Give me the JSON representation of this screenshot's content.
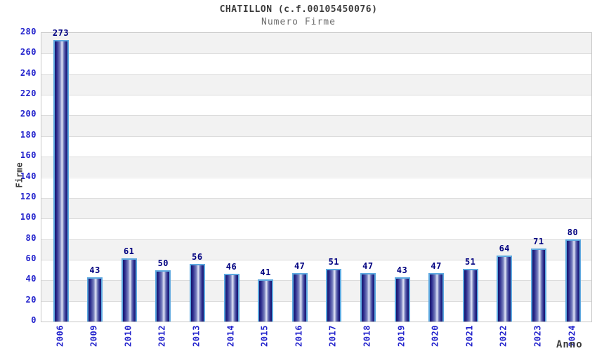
{
  "chart": {
    "title": "CHATILLON (c.f.00105450076)",
    "subtitle": "Numero Firme",
    "y_axis_label": "Firme",
    "x_axis_label": "Anno"
  },
  "chart_data": {
    "type": "bar",
    "title": "CHATILLON (c.f.00105450076)",
    "subtitle": "Numero Firme",
    "xlabel": "Anno",
    "ylabel": "Firme",
    "categories": [
      "2006",
      "2009",
      "2010",
      "2012",
      "2013",
      "2014",
      "2015",
      "2016",
      "2017",
      "2018",
      "2019",
      "2020",
      "2021",
      "2022",
      "2023",
      "2024"
    ],
    "values": [
      273,
      43,
      61,
      50,
      56,
      46,
      41,
      47,
      51,
      47,
      43,
      47,
      51,
      64,
      71,
      80
    ],
    "ylim": [
      0,
      280
    ],
    "ytick_step": 20,
    "grid": "horizontal-bands-alternating",
    "legend": "none",
    "bar_value_labels_shown": true,
    "colors": {
      "tick_label_blue": "#2222cc",
      "value_label_navy": "#000080",
      "bar_outline": "#5ea9e0",
      "bar_dark": "#15156b",
      "bar_mid": "#2a2a8c",
      "bar_light": "#e2e6f7",
      "band_gray": "#f2f2f2",
      "band_white": "#ffffff",
      "gridline": "#dcdcdc",
      "plot_border": "#c9c9c9",
      "title_color": "#3c3c3c",
      "subtitle_color": "#6e6e6e"
    }
  }
}
